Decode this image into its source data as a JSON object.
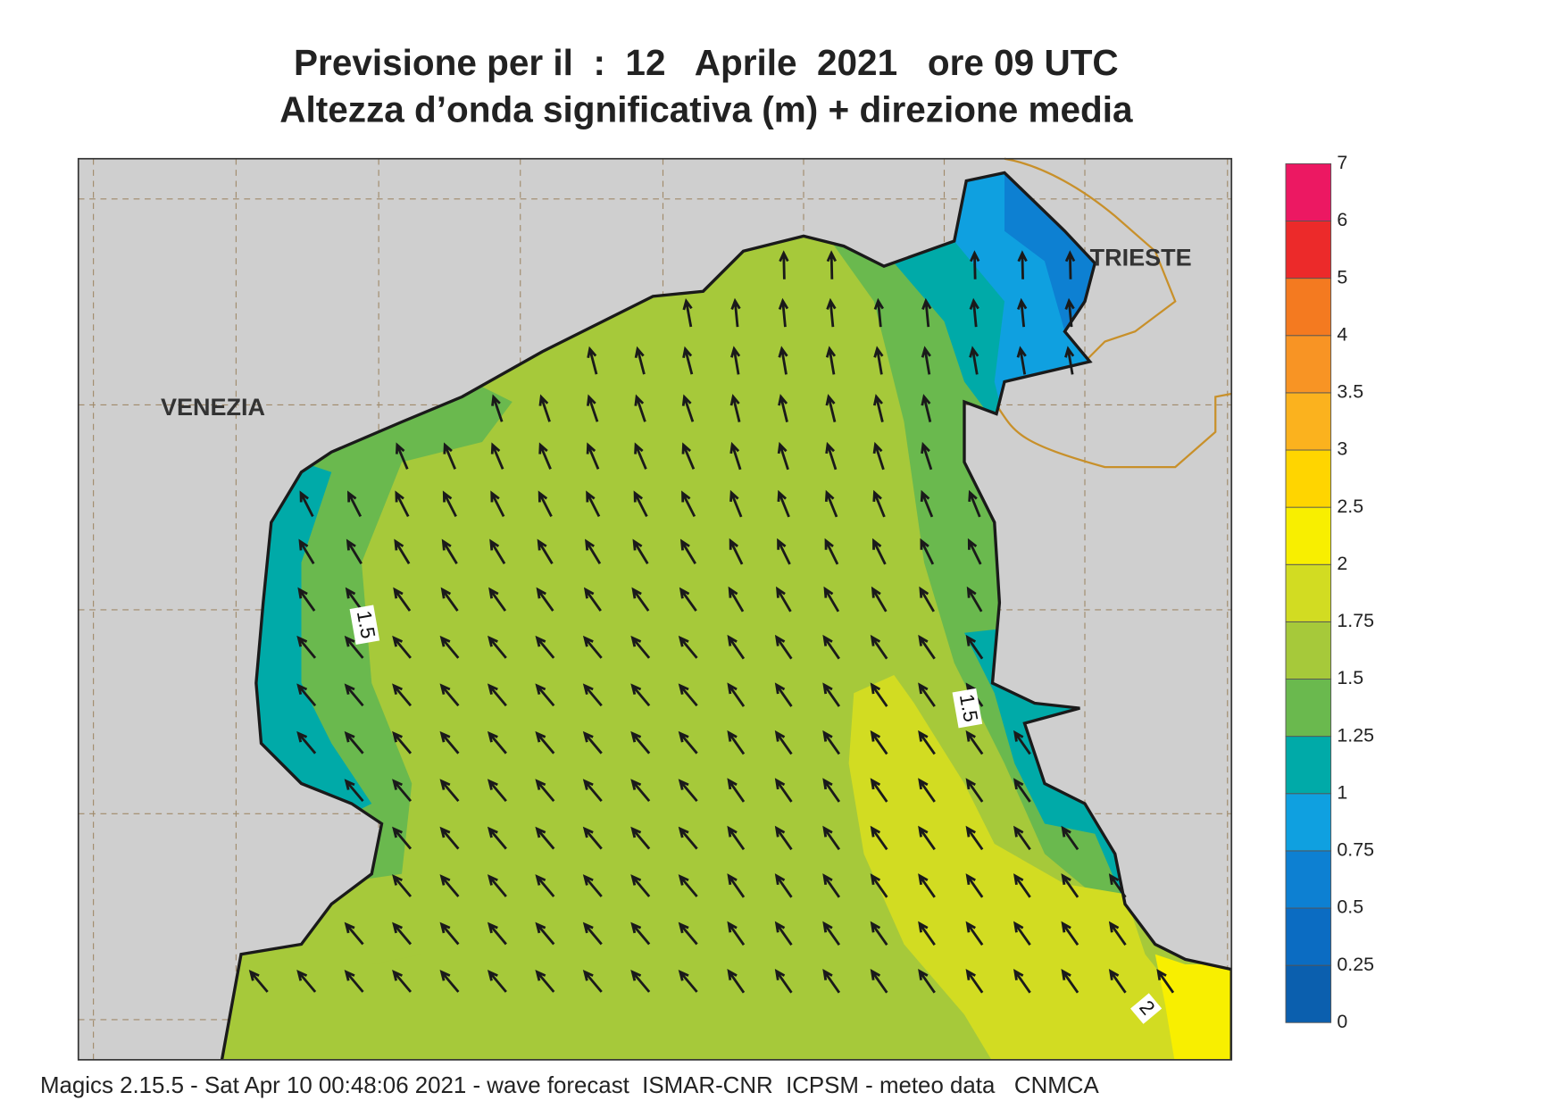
{
  "title": [
    "Previsione per il  :  12   Aprile  2021   ore 09 UTC",
    "Altezza d’onda significativa (m) + direzione media"
  ],
  "map": {
    "place_labels": [
      "VENEZIA",
      "TRIESTE"
    ],
    "contour_labels": [
      "1.5",
      "1.5",
      "2"
    ]
  },
  "colorbar": {
    "levels": [
      0,
      0.25,
      0.5,
      0.75,
      1,
      1.25,
      1.5,
      1.75,
      2,
      2.5,
      3,
      3.5,
      4,
      5,
      6,
      7
    ],
    "colors": [
      "#0b5fae",
      "#0b6cc2",
      "#0d80d2",
      "#0fa0e0",
      "#00aaa8",
      "#6ab94e",
      "#a6c93a",
      "#d2dc22",
      "#f8ef00",
      "#ffd500",
      "#fbb21e",
      "#f89424",
      "#f47a20",
      "#ec2a2a",
      "#ec1862"
    ]
  },
  "footer": "Magics 2.15.5 - Sat Apr 10 00:48:06 2021 - wave forecast  ISMAR-CNR  ICPSM - meteo data   CNMCA"
}
